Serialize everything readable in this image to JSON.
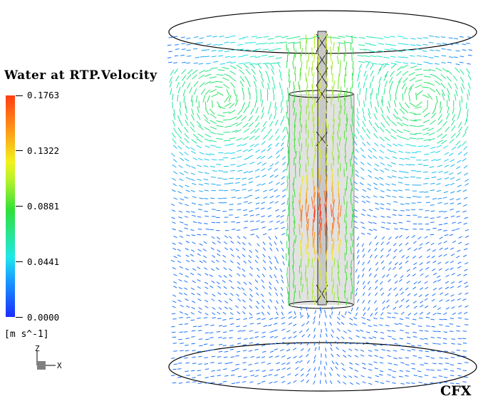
{
  "legend": {
    "title": "Water at RTP.Velocity",
    "units": "[m s^-1]",
    "ticks": [
      "0.1763",
      "0.1322",
      "0.0881",
      "0.0441",
      "0.0000"
    ]
  },
  "axes": {
    "z": "Z",
    "x": "X"
  },
  "brand": "CFX",
  "colors": {
    "max": "#ff2a10",
    "high": "#f2f21c",
    "mid": "#2fe03a",
    "low": "#20e8e8",
    "min": "#1a2cff"
  }
}
